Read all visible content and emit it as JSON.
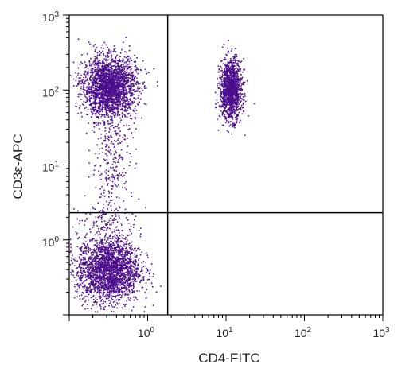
{
  "chart_data": {
    "type": "scatter",
    "scale": "log",
    "xlabel": "CD4-FITC",
    "ylabel": "CD3ε-APC",
    "xlim": [
      0.1,
      1000
    ],
    "ylim": [
      0.1,
      1000
    ],
    "x_ticks": [
      {
        "base": "10",
        "exp": "0",
        "value": 1
      },
      {
        "base": "10",
        "exp": "1",
        "value": 10
      },
      {
        "base": "10",
        "exp": "2",
        "value": 100
      },
      {
        "base": "10",
        "exp": "3",
        "value": 1000
      }
    ],
    "y_ticks": [
      {
        "base": "10",
        "exp": "0",
        "value": 1
      },
      {
        "base": "10",
        "exp": "1",
        "value": 10
      },
      {
        "base": "10",
        "exp": "2",
        "value": 100
      },
      {
        "base": "10",
        "exp": "3",
        "value": 1000
      }
    ],
    "quadrant_gates": {
      "x": 1.8,
      "y": 2.3
    },
    "point_color": "#4b0d8c",
    "line_color": "#000000",
    "populations": [
      {
        "center_x": 0.33,
        "center_y": 110,
        "spread_log_x": 0.17,
        "spread_log_y": 0.2,
        "count": 2300
      },
      {
        "center_x": 0.32,
        "center_y": 0.4,
        "spread_log_x": 0.2,
        "spread_log_y": 0.22,
        "count": 2300
      },
      {
        "center_x": 11.5,
        "center_y": 100,
        "spread_log_x": 0.07,
        "spread_log_y": 0.2,
        "count": 1300
      },
      {
        "center_x": 0.36,
        "center_y": 12,
        "spread_log_x": 0.14,
        "spread_log_y": 0.45,
        "count": 300
      },
      {
        "center_x": 0.3,
        "center_y": 1.8,
        "spread_log_x": 0.2,
        "spread_log_y": 0.1,
        "count": 80
      }
    ]
  }
}
